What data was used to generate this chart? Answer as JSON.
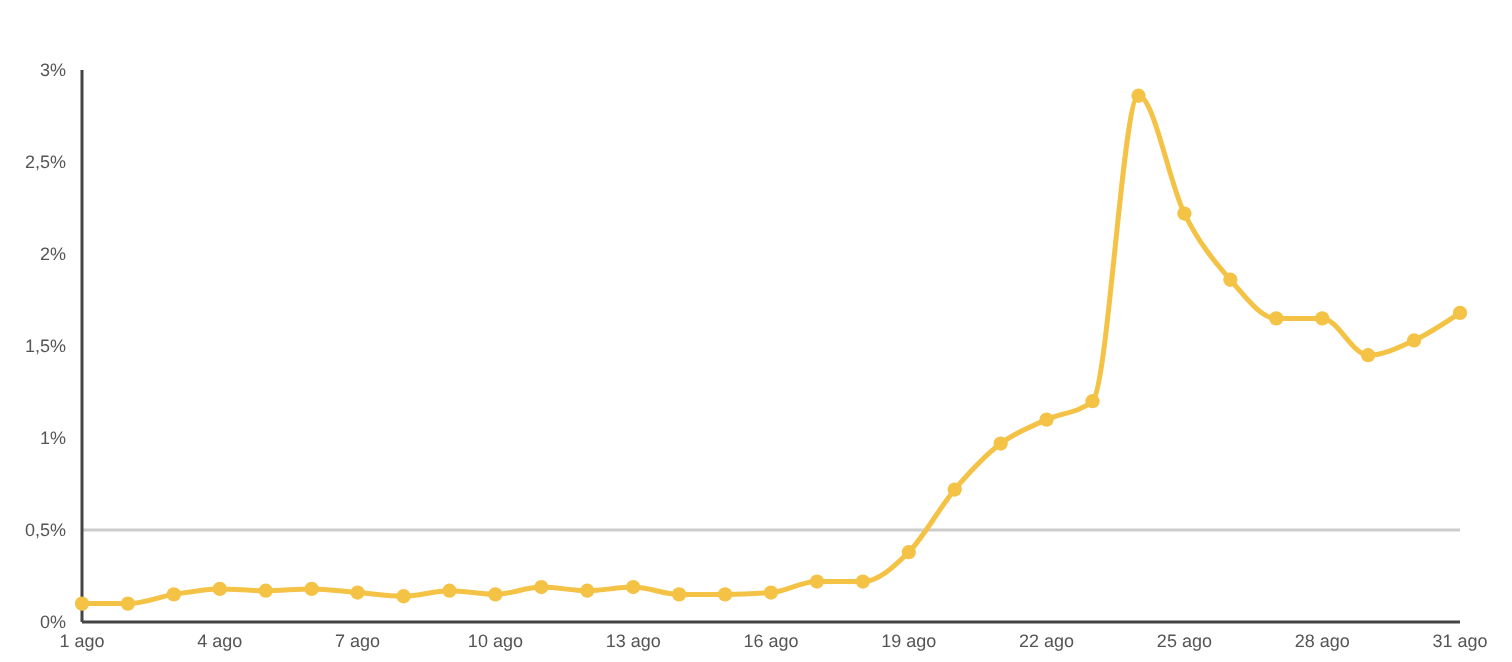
{
  "chart_data": {
    "type": "line",
    "categories": [
      "1 ago",
      null,
      null,
      "4 ago",
      null,
      null,
      "7 ago",
      null,
      null,
      "10 ago",
      null,
      null,
      "13 ago",
      null,
      null,
      "16 ago",
      null,
      null,
      "19 ago",
      null,
      null,
      "22 ago",
      null,
      null,
      "25 ago",
      null,
      null,
      "28 ago",
      null,
      null,
      "31 ago"
    ],
    "series": [
      {
        "color": "#f4c245",
        "values": [
          0.1,
          0.1,
          0.15,
          0.18,
          0.17,
          0.18,
          0.16,
          0.14,
          0.17,
          0.15,
          0.19,
          0.17,
          0.19,
          0.15,
          0.15,
          0.16,
          0.22,
          0.22,
          0.38,
          0.72,
          0.97,
          1.1,
          1.2,
          2.86,
          2.22,
          1.86,
          1.65,
          1.65,
          1.45,
          1.53,
          1.68
        ]
      }
    ],
    "ylim": [
      0,
      3
    ],
    "yticks": [
      {
        "value": 0,
        "label": "0%"
      },
      {
        "value": 0.5,
        "label": "0,5%"
      },
      {
        "value": 1,
        "label": "1%"
      },
      {
        "value": 1.5,
        "label": "1,5%"
      },
      {
        "value": 2,
        "label": "2%"
      },
      {
        "value": 2.5,
        "label": "2,5%"
      },
      {
        "value": 3,
        "label": "3%"
      }
    ],
    "ref_lines": [
      {
        "axis": "y",
        "value": 0.5,
        "color": "#cccccc"
      }
    ],
    "marker": "circle",
    "line_style": "solid",
    "grid": false
  }
}
